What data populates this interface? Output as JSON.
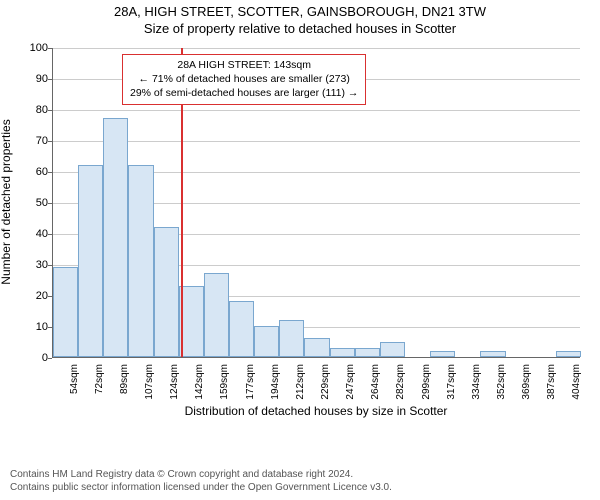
{
  "titles": {
    "main": "28A, HIGH STREET, SCOTTER, GAINSBOROUGH, DN21 3TW",
    "sub": "Size of property relative to detached houses in Scotter"
  },
  "chart": {
    "type": "histogram",
    "y_label": "Number of detached properties",
    "x_label": "Distribution of detached houses by size in Scotter",
    "ylim": [
      0,
      100
    ],
    "ytick_step": 10,
    "y_ticks": [
      0,
      10,
      20,
      30,
      40,
      50,
      60,
      70,
      80,
      90,
      100
    ],
    "x_ticks": [
      "54sqm",
      "72sqm",
      "89sqm",
      "107sqm",
      "124sqm",
      "142sqm",
      "159sqm",
      "177sqm",
      "194sqm",
      "212sqm",
      "229sqm",
      "247sqm",
      "264sqm",
      "282sqm",
      "299sqm",
      "317sqm",
      "334sqm",
      "352sqm",
      "369sqm",
      "387sqm",
      "404sqm"
    ],
    "values": [
      29,
      62,
      77,
      62,
      42,
      23,
      27,
      18,
      10,
      12,
      6,
      3,
      3,
      5,
      0,
      2,
      0,
      2,
      0,
      0,
      2
    ],
    "bar_fill": "#d7e6f4",
    "bar_stroke": "#7aa7cf",
    "grid_color": "#cccccc",
    "axis_color": "#666666",
    "background_color": "#ffffff",
    "reference_line": {
      "color": "#d93030",
      "position_index": 5.1
    },
    "label_fontsize": 12,
    "tick_fontsize": 11,
    "title_fontsize": 13
  },
  "annotation": {
    "line1": "28A HIGH STREET: 143sqm",
    "line2": "← 71% of detached houses are smaller (273)",
    "line3": "29% of semi-detached houses are larger (111) →",
    "border_color": "#d93030",
    "bg_color": "#ffffff",
    "fontsize": 10.5
  },
  "footer": {
    "line1": "Contains HM Land Registry data © Crown copyright and database right 2024.",
    "line2": "Contains public sector information licensed under the Open Government Licence v3.0."
  }
}
